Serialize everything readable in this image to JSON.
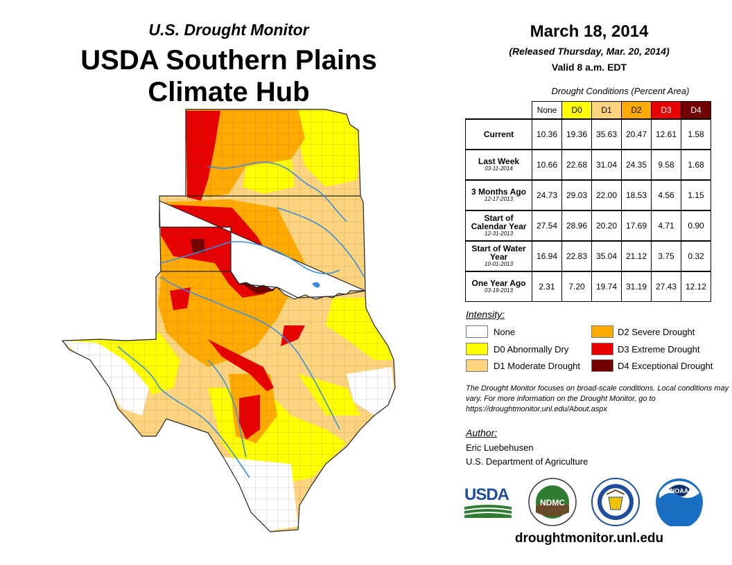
{
  "header": {
    "supertitle": "U.S. Drought Monitor",
    "title_line1": "USDA Southern Plains",
    "title_line2": "Climate Hub"
  },
  "map_info": {
    "date": "March 18, 2014",
    "released": "(Released Thursday, Mar. 20, 2014)",
    "valid": "Valid 8 a.m. EDT"
  },
  "table": {
    "caption": "Drought Conditions (Percent Area)",
    "columns": [
      "None",
      "D0",
      "D1",
      "D2",
      "D3",
      "D4"
    ],
    "column_colors": [
      "#ffffff",
      "#ffff00",
      "#fcd37f",
      "#ffaa00",
      "#e60000",
      "#730000"
    ],
    "rows": [
      {
        "label": "Current",
        "date": "",
        "values": [
          "10.36",
          "19.36",
          "35.63",
          "20.47",
          "12.61",
          "1.58"
        ]
      },
      {
        "label": "Last Week",
        "date": "03-11-2014",
        "values": [
          "10.66",
          "22.68",
          "31.04",
          "24.35",
          "9.58",
          "1.68"
        ]
      },
      {
        "label": "3 Months Ago",
        "date": "12-17-2013",
        "values": [
          "24.73",
          "29.03",
          "22.00",
          "18.53",
          "4.56",
          "1.15"
        ]
      },
      {
        "label": "Start of Calendar Year",
        "date": "12-31-2013",
        "values": [
          "27.54",
          "28.96",
          "20.20",
          "17.69",
          "4.71",
          "0.90"
        ]
      },
      {
        "label": "Start of Water Year",
        "date": "10-01-2013",
        "values": [
          "16.94",
          "22.83",
          "35.04",
          "21.12",
          "3.75",
          "0.32"
        ]
      },
      {
        "label": "One Year Ago",
        "date": "03-19-2013",
        "values": [
          "2.31",
          "7.20",
          "19.74",
          "31.19",
          "27.43",
          "12.12"
        ]
      }
    ]
  },
  "legend": {
    "heading": "Intensity:",
    "items": [
      {
        "label": "None",
        "color": "#ffffff"
      },
      {
        "label": "D0 Abnormally Dry",
        "color": "#ffff00"
      },
      {
        "label": "D1 Moderate Drought",
        "color": "#fcd37f"
      },
      {
        "label": "D2 Severe Drought",
        "color": "#ffaa00"
      },
      {
        "label": "D3 Extreme Drought",
        "color": "#e60000"
      },
      {
        "label": "D4 Exceptional Drought",
        "color": "#730000"
      }
    ]
  },
  "note": "The Drought Monitor focuses on broad-scale conditions. Local conditions may vary. For more information on the Drought Monitor, go to https://droughtmonitor.unl.edu/About.aspx",
  "author": {
    "heading": "Author:",
    "name": "Eric Luebehusen",
    "org": "U.S. Department of Agriculture"
  },
  "logos": {
    "usda": "USDA",
    "ndmc": "NDMC",
    "noaa": "NOAA"
  },
  "footer": {
    "website": "droughtmonitor.unl.edu"
  },
  "colors": {
    "none": "#ffffff",
    "d0": "#ffff00",
    "d1": "#fcd37f",
    "d2": "#ffaa00",
    "d3": "#e60000",
    "d4": "#730000",
    "water": "#3d8fd9",
    "usda_green": "#2e7d32",
    "usda_blue": "#1f4e9c",
    "noaa_blue": "#1b6fc2"
  }
}
